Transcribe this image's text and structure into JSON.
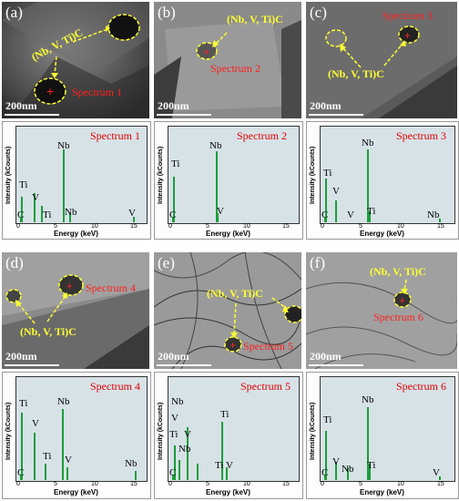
{
  "carbide_label": "(Nb, V, Ti)C",
  "scale_label": "200nm",
  "energy_axis": "Energy (keV)",
  "intensity_axis": "Intensity (kCounts)",
  "tick_labels": [
    "0",
    "5",
    "10",
    "15"
  ],
  "tem_panels": [
    {
      "panel": "(a)",
      "spectrum": "Spectrum 1"
    },
    {
      "panel": "(b)",
      "spectrum": "Spectrum 2"
    },
    {
      "panel": "(c)",
      "spectrum": "Spectrum 3"
    },
    {
      "panel": "(d)",
      "spectrum": "Spectrum 4"
    },
    {
      "panel": "(e)",
      "spectrum": "Spectrum 5"
    },
    {
      "panel": "(f)",
      "spectrum": "Spectrum 6"
    }
  ],
  "colors": {
    "spectrum_bg": "#d7e2e7",
    "peak": "#1a9e3a",
    "carbide_marker": "#ffff33",
    "spectrum_text": "#e00000"
  },
  "chart_data": [
    {
      "type": "bar",
      "title": "Spectrum 1",
      "xlabel": "Energy (keV)",
      "ylabel": "Intensity (kCounts)",
      "xlim": [
        0,
        17
      ],
      "peaks": [
        {
          "label": "C",
          "x": 0.28,
          "y": 0.08
        },
        {
          "label": "Ti",
          "x": 0.45,
          "y": 0.3
        },
        {
          "label": "V",
          "x": 4.95,
          "y": 0.33
        },
        {
          "label": "Ti",
          "x": 4.51,
          "y": 0.1
        },
        {
          "label": "Nb",
          "x": 2.17,
          "y": 1.0
        },
        {
          "label": "Nb",
          "x": 16.6,
          "y": 0.12
        },
        {
          "label": "V",
          "x": 16.0,
          "y": 0.1
        }
      ],
      "element_labels": [
        "Ti",
        "V",
        "C",
        "Ti",
        "Nb",
        "Nb",
        "V"
      ]
    },
    {
      "type": "bar",
      "title": "Spectrum 2",
      "xlabel": "Energy (keV)",
      "ylabel": "Intensity (kCounts)",
      "xlim": [
        0,
        17
      ],
      "element_labels": [
        "Ti",
        "Nb",
        "C",
        "V"
      ]
    },
    {
      "type": "bar",
      "title": "Spectrum 3",
      "xlabel": "Energy (keV)",
      "ylabel": "Intensity (kCounts)",
      "xlim": [
        0,
        17
      ],
      "element_labels": [
        "Ti",
        "V",
        "Nb",
        "C",
        "V",
        "Ti",
        "Nb"
      ]
    },
    {
      "type": "bar",
      "title": "Spectrum 4",
      "xlabel": "Energy (keV)",
      "ylabel": "Intensity (kCounts)",
      "xlim": [
        0,
        17
      ],
      "element_labels": [
        "Ti",
        "V",
        "Nb",
        "C",
        "Ti",
        "V",
        "Nb"
      ]
    },
    {
      "type": "bar",
      "title": "Spectrum 5",
      "xlabel": "Energy (keV)",
      "ylabel": "Intensity (kCounts)",
      "xlim": [
        0,
        17
      ],
      "element_labels": [
        "Nb",
        "C",
        "V",
        "Ti",
        "Nb",
        "V",
        "Ti",
        "Ti",
        "V"
      ]
    },
    {
      "type": "bar",
      "title": "Spectrum 6",
      "xlabel": "Energy (keV)",
      "ylabel": "Intensity (kCounts)",
      "xlim": [
        0,
        17
      ],
      "element_labels": [
        "Ti",
        "Nb",
        "C",
        "V",
        "Nb",
        "Ti",
        "V"
      ]
    }
  ]
}
